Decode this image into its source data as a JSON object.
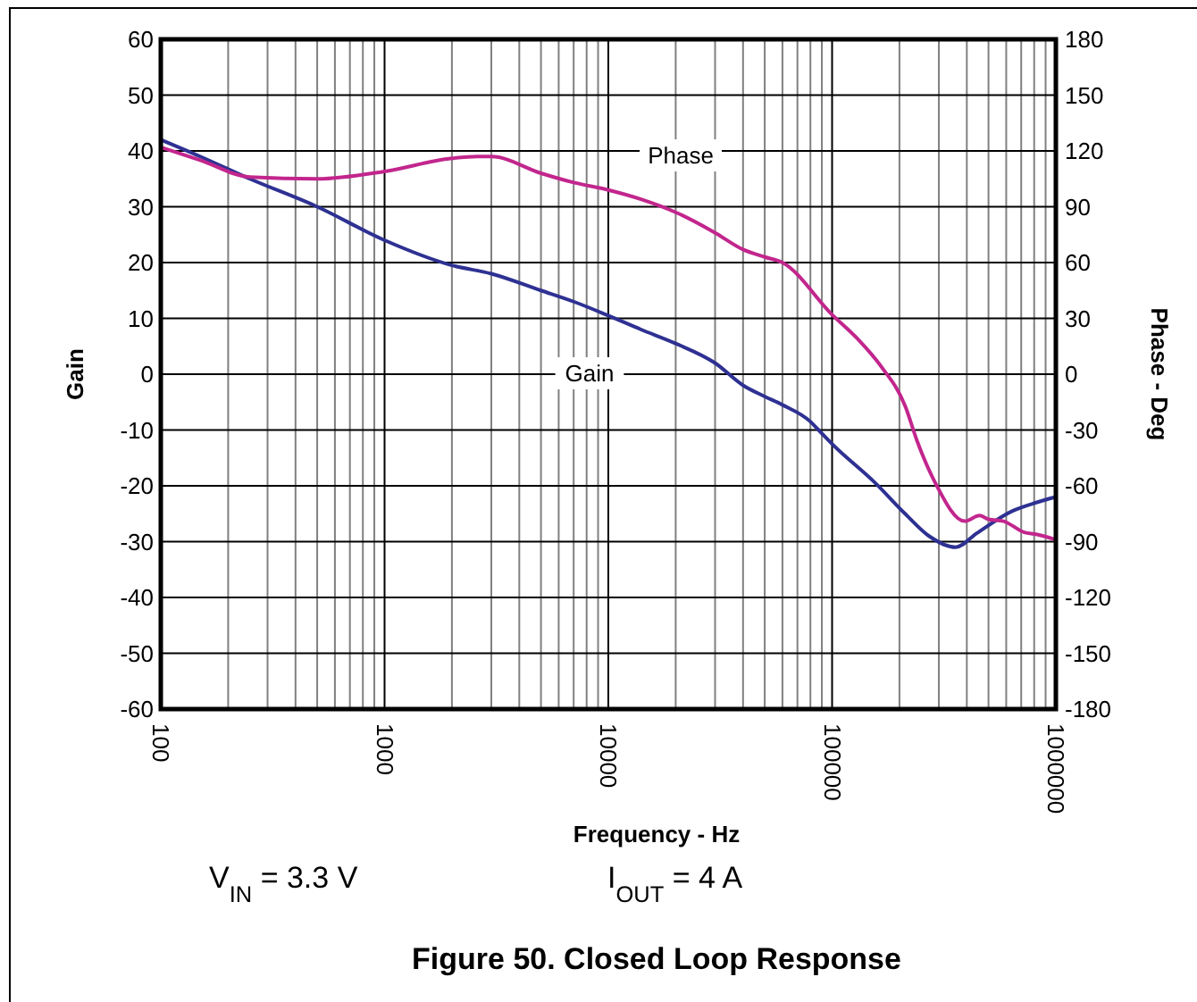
{
  "chart_data": {
    "type": "line",
    "title": "Figure 50. Closed Loop Response",
    "xlabel": "Frequency - Hz",
    "ylabel": "Gain",
    "y2label": "Phase - Deg",
    "annotations": [
      "V$_{IN}$ = 3.3 V",
      "I$_{OUT}$ = 4 A"
    ],
    "log": "x",
    "grid": true,
    "legend": false,
    "xlim": [
      100,
      1000000
    ],
    "xticks": [
      100,
      {
        "value": 200,
        "label": null
      },
      {
        "value": 300,
        "label": null
      },
      {
        "value": 400,
        "label": null
      },
      {
        "value": 500,
        "label": null
      },
      {
        "value": 600,
        "label": null
      },
      {
        "value": 700,
        "label": null
      },
      {
        "value": 800,
        "label": null
      },
      {
        "value": 900,
        "label": null
      },
      1000,
      {
        "value": 2000,
        "label": null
      },
      {
        "value": 3000,
        "label": null
      },
      {
        "value": 4000,
        "label": null
      },
      {
        "value": 5000,
        "label": null
      },
      {
        "value": 6000,
        "label": null
      },
      {
        "value": 7000,
        "label": null
      },
      {
        "value": 8000,
        "label": null
      },
      {
        "value": 9000,
        "label": null
      },
      10000,
      {
        "value": 20000,
        "label": null
      },
      {
        "value": 30000,
        "label": null
      },
      {
        "value": 40000,
        "label": null
      },
      {
        "value": 50000,
        "label": null
      },
      {
        "value": 60000,
        "label": null
      },
      {
        "value": 70000,
        "label": null
      },
      {
        "value": 80000,
        "label": null
      },
      {
        "value": 90000,
        "label": null
      },
      100000,
      {
        "value": 200000,
        "label": null
      },
      {
        "value": 300000,
        "label": null
      },
      {
        "value": 400000,
        "label": null
      },
      {
        "value": 500000,
        "label": null
      },
      {
        "value": 600000,
        "label": null
      },
      {
        "value": 700000,
        "label": null
      },
      {
        "value": 800000,
        "label": null
      },
      {
        "value": 900000,
        "label": null
      },
      1000000
    ],
    "ylim": [
      -60,
      60
    ],
    "yticks": [
      -60,
      -50,
      -40,
      -30,
      -20,
      -10,
      0,
      10,
      20,
      30,
      40,
      50,
      60
    ],
    "y2lim": [
      -180,
      180
    ],
    "y2ticks": [
      -180,
      -150,
      -120,
      -90,
      -60,
      -30,
      0,
      30,
      60,
      90,
      120,
      150,
      180
    ],
    "series": [
      {
        "name": "Gain",
        "color": "#2e3192",
        "x": [
          100,
          150,
          250,
          500,
          1000,
          2000,
          3000,
          5000,
          7000,
          10000,
          14000,
          20000,
          30000,
          40000,
          50000,
          60000,
          80000,
          87000,
          100000,
          156000,
          212000,
          271000,
          357000,
          443000,
          640000,
          817000,
          1000000
        ],
        "values": [
          42,
          39,
          35,
          30,
          24,
          19.5,
          18,
          15,
          13,
          10.5,
          8,
          5.5,
          2,
          -2,
          -4,
          -5.5,
          -8.5,
          -10,
          -12.5,
          -19.5,
          -25,
          -29,
          -31,
          -28.5,
          -24.5,
          -23,
          -22
        ]
      },
      {
        "name": "Phase",
        "color": "#c2268d",
        "axis": "y2",
        "x": [
          100,
          150,
          250,
          500,
          1000,
          2000,
          2600,
          3000,
          5000,
          7000,
          10000,
          14000,
          20000,
          30000,
          40000,
          50000,
          60000,
          100000,
          130000,
          166000,
          212000,
          240000,
          288000,
          392000,
          456000,
          500000,
          583000,
          723000,
          817000,
          1000000
        ],
        "values": [
          122,
          115,
          106,
          105,
          109,
          116,
          117,
          117,
          108,
          103,
          99,
          94,
          87,
          76,
          67,
          63,
          60,
          32,
          19,
          4,
          -17,
          -36,
          -58,
          -79,
          -76,
          -78,
          -79,
          -85,
          -86,
          -89
        ]
      }
    ]
  }
}
